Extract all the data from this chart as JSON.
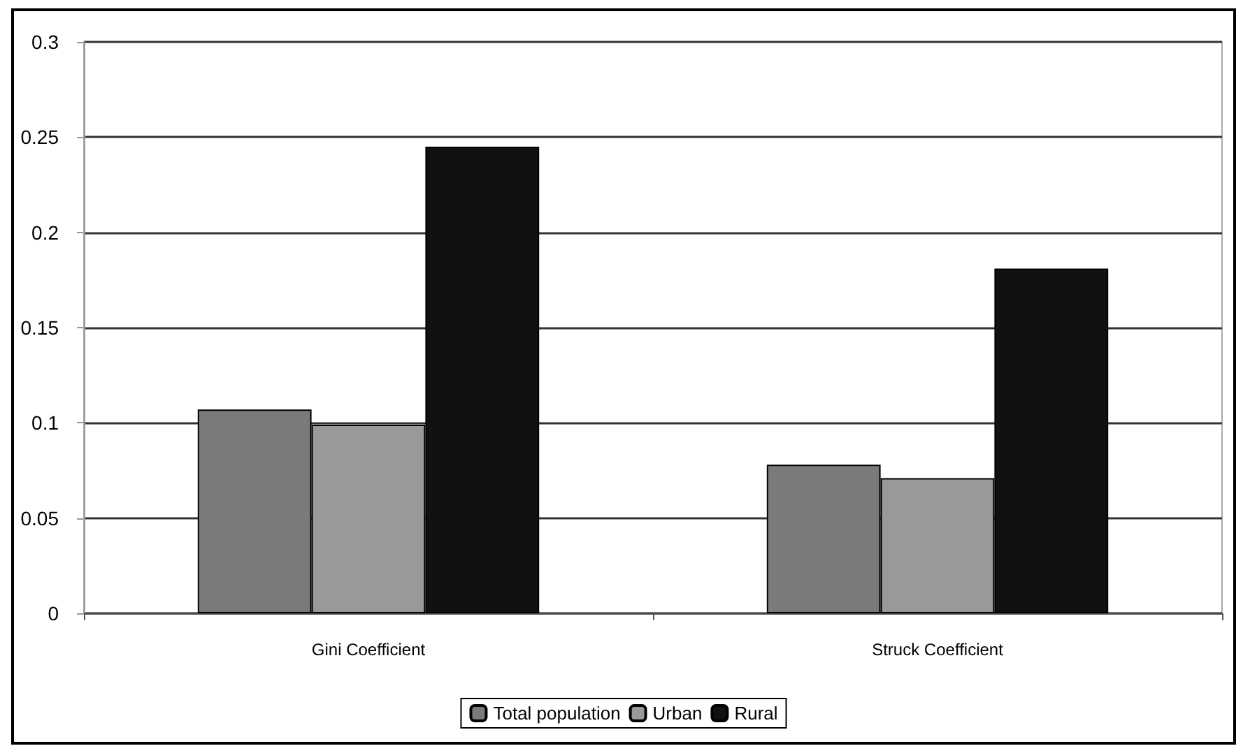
{
  "chart_data": {
    "type": "bar",
    "categories": [
      "Gini Coefficient",
      "Struck Coefficient"
    ],
    "series": [
      {
        "name": "Total population",
        "color": "#7a7a7a",
        "values": [
          0.107,
          0.078
        ]
      },
      {
        "name": "Urban",
        "color": "#999999",
        "values": [
          0.099,
          0.071
        ]
      },
      {
        "name": "Rural",
        "color": "#111111",
        "values": [
          0.245,
          0.181
        ]
      }
    ],
    "ylim": [
      0,
      0.3
    ],
    "yticks": [
      0,
      0.05,
      0.1,
      0.15,
      0.2,
      0.25,
      0.3
    ],
    "grid": "y",
    "legend": "bottom"
  }
}
